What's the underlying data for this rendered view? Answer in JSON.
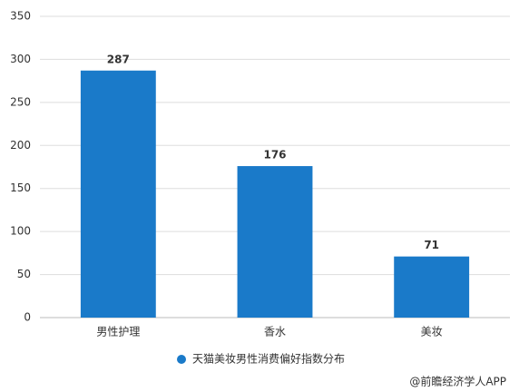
{
  "chart_data": {
    "type": "bar",
    "categories": [
      "男性护理",
      "香水",
      "美妆"
    ],
    "series": [
      {
        "name": "天猫美妆男性消费偏好指数分布",
        "color": "#1a7ac9",
        "values": [
          287,
          176,
          71
        ]
      }
    ],
    "ylim": [
      0,
      350
    ],
    "yticks": [
      0,
      50,
      100,
      150,
      200,
      250,
      300,
      350
    ],
    "grid": true,
    "legend": "bottom",
    "source": "@前瞻经济学人APP"
  }
}
